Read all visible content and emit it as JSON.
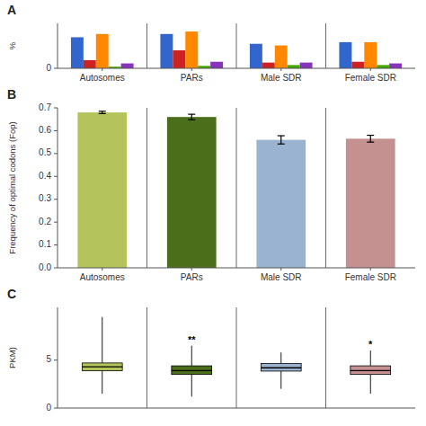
{
  "chart_data": [
    {
      "type": "bar",
      "title": "A",
      "categories": [
        "Autosomes",
        "PARs",
        "Male SDR",
        "Female SDR"
      ],
      "series": [
        {
          "color": "#3366cc",
          "values": [
            0.38,
            0.42,
            0.3,
            0.32
          ]
        },
        {
          "color": "#cc2222",
          "values": [
            0.1,
            0.22,
            0.07,
            0.08
          ]
        },
        {
          "color": "#ff8800",
          "values": [
            0.42,
            0.45,
            0.28,
            0.32
          ]
        },
        {
          "color": "#44aa00",
          "values": [
            0.02,
            0.03,
            0.04,
            0.04
          ]
        },
        {
          "color": "#8833bb",
          "values": [
            0.06,
            0.08,
            0.07,
            0.06
          ]
        }
      ],
      "ylabel": "%",
      "ylim": [
        0.0,
        0.55
      ],
      "yticks": [
        0
      ]
    },
    {
      "type": "bar",
      "title": "B",
      "categories": [
        "Autosomes",
        "PARs",
        "Male SDR",
        "Female SDR"
      ],
      "values": [
        0.68,
        0.66,
        0.56,
        0.565
      ],
      "errors": [
        0.005,
        0.012,
        0.018,
        0.015
      ],
      "colors": [
        "#b5c45a",
        "#4a6e1a",
        "#9ab3d0",
        "#c49090"
      ],
      "ylabel": "Frequency of optimal codons (Fop)",
      "ylim": [
        0,
        0.7
      ],
      "yticks": [
        {
          "value": 0.0,
          "label": "0.0"
        },
        0.1,
        0.2,
        0.3,
        0.4,
        0.5,
        0.6,
        0.7
      ]
    },
    {
      "type": "box",
      "title": "C",
      "categories": [
        null,
        null,
        null,
        null
      ],
      "medians": [
        4.3,
        3.9,
        4.2,
        3.9
      ],
      "q1": [
        3.9,
        3.5,
        3.85,
        3.5
      ],
      "q3": [
        4.7,
        4.4,
        4.65,
        4.4
      ],
      "whisker_low": [
        1.5,
        1.2,
        2.0,
        1.5
      ],
      "whisker_high": [
        9.5,
        6.5,
        5.8,
        6.0
      ],
      "colors": [
        "#b5c45a",
        "#4a6e1a",
        "#9ab3d0",
        "#c49090"
      ],
      "annotations": [
        null,
        "**",
        null,
        "*"
      ],
      "ylabel": "PKM)",
      "ylim": [
        0,
        10.5
      ],
      "yticks": [
        0,
        5
      ],
      "tick_labels": "y"
    }
  ]
}
